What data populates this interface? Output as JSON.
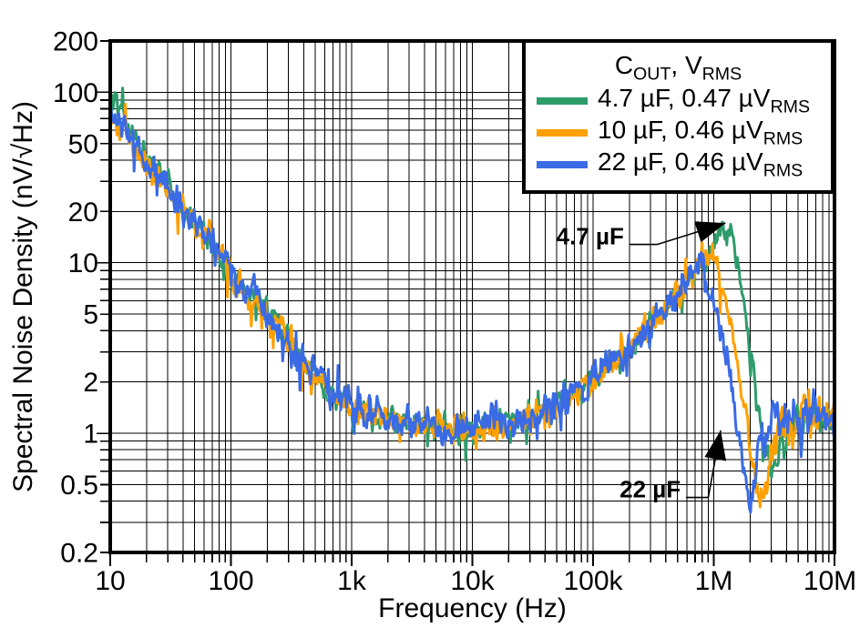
{
  "chart_data": {
    "type": "line",
    "title": "",
    "xlabel": "Frequency (Hz)",
    "ylabel": "Spectral Noise Density (nV/√Hz)",
    "x_scale": "log",
    "y_scale": "log",
    "xlim": [
      10,
      10000000
    ],
    "ylim": [
      0.2,
      200
    ],
    "grid": "major and minor, solid black, both axes",
    "x_ticks": [
      {
        "v": 10,
        "label": "10"
      },
      {
        "v": 100,
        "label": "100"
      },
      {
        "v": 1000,
        "label": "1k"
      },
      {
        "v": 10000,
        "label": "10k"
      },
      {
        "v": 100000,
        "label": "100k"
      },
      {
        "v": 1000000,
        "label": "1M"
      },
      {
        "v": 10000000,
        "label": "10M"
      }
    ],
    "y_ticks": [
      {
        "v": 200,
        "label": "200"
      },
      {
        "v": 100,
        "label": "100"
      },
      {
        "v": 50,
        "label": "50"
      },
      {
        "v": 20,
        "label": "20"
      },
      {
        "v": 10,
        "label": "10"
      },
      {
        "v": 5,
        "label": "5"
      },
      {
        "v": 2,
        "label": "2"
      },
      {
        "v": 1,
        "label": "1"
      },
      {
        "v": 0.5,
        "label": "0.5"
      },
      {
        "v": 0.2,
        "label": "0.2"
      }
    ],
    "legend": {
      "position": "top-right",
      "title": {
        "c": "C",
        "c_sub": "OUT",
        "v": ", V",
        "v_sub": "RMS"
      },
      "entries": [
        {
          "color": "#2E9B6B",
          "main": "4.7 µF, 0.47 µV",
          "sub": "RMS"
        },
        {
          "color": "#FFA000",
          "main": "10 µF, 0.46 µV",
          "sub": "RMS"
        },
        {
          "color": "#3A6BE5",
          "main": "22 µF, 0.46 µV",
          "sub": "RMS"
        }
      ]
    },
    "series": [
      {
        "name": "4.7 µF",
        "color": "#2E9B6B",
        "noise": 0.034,
        "seed": 101,
        "points": [
          [
            10,
            95
          ],
          [
            13,
            68
          ],
          [
            18,
            48
          ],
          [
            25,
            33
          ],
          [
            35,
            24
          ],
          [
            50,
            18
          ],
          [
            70,
            13.2
          ],
          [
            100,
            8.8
          ],
          [
            130,
            6.6
          ],
          [
            180,
            5.7
          ],
          [
            250,
            4.3
          ],
          [
            350,
            3.0
          ],
          [
            500,
            2.2
          ],
          [
            700,
            1.72
          ],
          [
            1000,
            1.4
          ],
          [
            1500,
            1.26
          ],
          [
            3000,
            1.15
          ],
          [
            5000,
            1.08
          ],
          [
            10000,
            1.1
          ],
          [
            20000,
            1.17
          ],
          [
            30000,
            1.28
          ],
          [
            50000,
            1.48
          ],
          [
            100000,
            2.05
          ],
          [
            200000,
            3.1
          ],
          [
            300000,
            4.4
          ],
          [
            450000,
            5.9
          ],
          [
            600000,
            7.5
          ],
          [
            800000,
            9.9
          ],
          [
            1000000,
            12.6
          ],
          [
            1200000,
            15.3
          ],
          [
            1350000,
            16.5
          ],
          [
            1500000,
            12.5
          ],
          [
            1700000,
            7.2
          ],
          [
            2000000,
            3.3
          ],
          [
            2400000,
            1.25
          ],
          [
            2800000,
            0.63
          ],
          [
            3100000,
            0.54
          ],
          [
            3600000,
            0.78
          ],
          [
            4200000,
            1.0
          ],
          [
            5000000,
            1.15
          ],
          [
            6500000,
            1.25
          ],
          [
            8000000,
            1.2
          ],
          [
            10000000,
            1.3
          ]
        ]
      },
      {
        "name": "10 µF",
        "color": "#FFA000",
        "noise": 0.036,
        "seed": 202,
        "points": [
          [
            10,
            72
          ],
          [
            13,
            58
          ],
          [
            18,
            44
          ],
          [
            25,
            31
          ],
          [
            35,
            23
          ],
          [
            50,
            17.5
          ],
          [
            70,
            12.8
          ],
          [
            100,
            8.4
          ],
          [
            130,
            6.3
          ],
          [
            180,
            5.5
          ],
          [
            250,
            4.1
          ],
          [
            350,
            2.9
          ],
          [
            500,
            2.15
          ],
          [
            700,
            1.68
          ],
          [
            1000,
            1.36
          ],
          [
            1500,
            1.23
          ],
          [
            3000,
            1.12
          ],
          [
            5000,
            1.05
          ],
          [
            10000,
            1.08
          ],
          [
            20000,
            1.14
          ],
          [
            30000,
            1.25
          ],
          [
            50000,
            1.45
          ],
          [
            100000,
            2.0
          ],
          [
            200000,
            3.05
          ],
          [
            300000,
            4.4
          ],
          [
            400000,
            5.5
          ],
          [
            550000,
            7.2
          ],
          [
            700000,
            9.0
          ],
          [
            850000,
            11.0
          ],
          [
            950000,
            12.8
          ],
          [
            1050000,
            11.0
          ],
          [
            1200000,
            7.5
          ],
          [
            1400000,
            4.2
          ],
          [
            1700000,
            1.9
          ],
          [
            2000000,
            0.85
          ],
          [
            2300000,
            0.5
          ],
          [
            2500000,
            0.46
          ],
          [
            2800000,
            0.62
          ],
          [
            3200000,
            0.85
          ],
          [
            4000000,
            1.1
          ],
          [
            5000000,
            1.25
          ],
          [
            6000000,
            1.35
          ],
          [
            7000000,
            1.25
          ],
          [
            8500000,
            1.35
          ],
          [
            10000000,
            1.3
          ]
        ]
      },
      {
        "name": "22 µF",
        "color": "#3A6BE5",
        "noise": 0.044,
        "seed": 303,
        "points": [
          [
            10,
            86
          ],
          [
            13,
            62
          ],
          [
            18,
            46
          ],
          [
            25,
            32
          ],
          [
            35,
            23.5
          ],
          [
            50,
            17.8
          ],
          [
            70,
            13.0
          ],
          [
            100,
            8.6
          ],
          [
            130,
            6.4
          ],
          [
            180,
            5.6
          ],
          [
            250,
            4.2
          ],
          [
            350,
            2.95
          ],
          [
            500,
            2.18
          ],
          [
            700,
            1.7
          ],
          [
            1000,
            1.38
          ],
          [
            1500,
            1.24
          ],
          [
            3000,
            1.13
          ],
          [
            5000,
            1.06
          ],
          [
            10000,
            1.09
          ],
          [
            20000,
            1.15
          ],
          [
            30000,
            1.26
          ],
          [
            50000,
            1.46
          ],
          [
            100000,
            2.0
          ],
          [
            180000,
            2.9
          ],
          [
            280000,
            4.2
          ],
          [
            380000,
            5.3
          ],
          [
            500000,
            7.0
          ],
          [
            620000,
            8.8
          ],
          [
            740000,
            10.4
          ],
          [
            820000,
            9.3
          ],
          [
            950000,
            7.0
          ],
          [
            1100000,
            4.8
          ],
          [
            1300000,
            2.6
          ],
          [
            1550000,
            1.25
          ],
          [
            1800000,
            0.62
          ],
          [
            2000000,
            0.37
          ],
          [
            2200000,
            0.55
          ],
          [
            2500000,
            0.95
          ],
          [
            3000000,
            1.15
          ],
          [
            3500000,
            1.25
          ],
          [
            4500000,
            1.3
          ],
          [
            5500000,
            1.2
          ],
          [
            6500000,
            1.3
          ],
          [
            8000000,
            1.15
          ],
          [
            10000000,
            1.25
          ]
        ]
      }
    ],
    "annotations": [
      {
        "label": "4.7 µF",
        "label_f": 200000,
        "label_v": 12.8,
        "arrow": [
          [
            200000,
            12.8
          ],
          [
            340000,
            12.8
          ],
          [
            1250000,
            17.1
          ]
        ]
      },
      {
        "label": "22 µF",
        "label_f": 590000,
        "label_v": 0.42,
        "arrow": [
          [
            590000,
            0.42
          ],
          [
            900000,
            0.42
          ],
          [
            1140000,
            1.04
          ]
        ]
      }
    ]
  }
}
